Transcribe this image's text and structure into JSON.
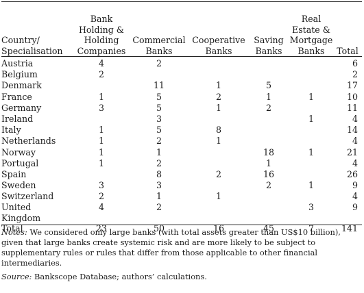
{
  "table": {
    "headers": [
      "Country/ Specialisation",
      "Bank Holding & Holding Companies",
      "Commercial Banks",
      "Cooperative Banks",
      "Saving Banks",
      "Real Estate & Mortgage Banks",
      "Total"
    ],
    "header_lines": {
      "country": [
        "Country/",
        "Specialisation"
      ],
      "bank_holding": [
        "Bank",
        "Holding &",
        "Holding",
        "Companies"
      ],
      "commercial": [
        "Commercial",
        "Banks"
      ],
      "cooperative": [
        "Cooperative",
        "Banks"
      ],
      "saving": [
        "Saving",
        "Banks"
      ],
      "real_estate": [
        "Real",
        "Estate &",
        "Mortgage",
        "Banks"
      ],
      "total": [
        "Total"
      ]
    },
    "rows": [
      {
        "country": "Austria",
        "holding": "4",
        "commercial": "2",
        "cooperative": "",
        "saving": "",
        "real_estate": "",
        "total": "6"
      },
      {
        "country": "Belgium",
        "holding": "2",
        "commercial": "",
        "cooperative": "",
        "saving": "",
        "real_estate": "",
        "total": "2"
      },
      {
        "country": "Denmark",
        "holding": "",
        "commercial": "11",
        "cooperative": "1",
        "saving": "5",
        "real_estate": "",
        "total": "17"
      },
      {
        "country": "France",
        "holding": "1",
        "commercial": "5",
        "cooperative": "2",
        "saving": "1",
        "real_estate": "1",
        "total": "10"
      },
      {
        "country": "Germany",
        "holding": "3",
        "commercial": "5",
        "cooperative": "1",
        "saving": "2",
        "real_estate": "",
        "total": "11"
      },
      {
        "country": "Ireland",
        "holding": "",
        "commercial": "3",
        "cooperative": "",
        "saving": "",
        "real_estate": "1",
        "total": "4"
      },
      {
        "country": "Italy",
        "holding": "1",
        "commercial": "5",
        "cooperative": "8",
        "saving": "",
        "real_estate": "",
        "total": "14"
      },
      {
        "country": "Netherlands",
        "holding": "1",
        "commercial": "2",
        "cooperative": "1",
        "saving": "",
        "real_estate": "",
        "total": "4"
      },
      {
        "country": "Norway",
        "holding": "1",
        "commercial": "1",
        "cooperative": "",
        "saving": "18",
        "real_estate": "1",
        "total": "21"
      },
      {
        "country": "Portugal",
        "holding": "1",
        "commercial": "2",
        "cooperative": "",
        "saving": "1",
        "real_estate": "",
        "total": "4"
      },
      {
        "country": "Spain",
        "holding": "",
        "commercial": "8",
        "cooperative": "2",
        "saving": "16",
        "real_estate": "",
        "total": "26"
      },
      {
        "country": "Sweden",
        "holding": "3",
        "commercial": "3",
        "cooperative": "",
        "saving": "2",
        "real_estate": "1",
        "total": "9"
      },
      {
        "country": "Switzerland",
        "holding": "2",
        "commercial": "1",
        "cooperative": "1",
        "saving": "",
        "real_estate": "",
        "total": "4"
      },
      {
        "country": "United Kingdom",
        "country_lines": [
          "United",
          "Kingdom"
        ],
        "holding": "4",
        "commercial": "2",
        "cooperative": "",
        "saving": "",
        "real_estate": "3",
        "total": "9"
      },
      {
        "country": "Total",
        "holding": "23",
        "commercial": "50",
        "cooperative": "16",
        "saving": "45",
        "real_estate": "7",
        "total": "141"
      }
    ]
  },
  "notes": {
    "label": "Notes:",
    "text": " We considered only large banks (with total assets greater than US$10 billion), given that large banks create systemic risk and are more likely to be subject to supplementary rules or rules that differ from those applicable to other financial intermediaries."
  },
  "source": {
    "label": "Source:",
    "text": " Bankscope Database; authors’ calculations."
  }
}
